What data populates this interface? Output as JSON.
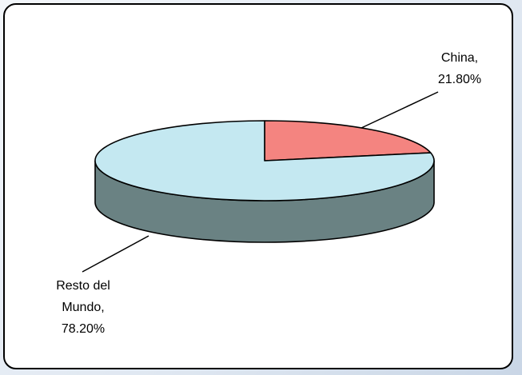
{
  "chart_data": {
    "type": "pie",
    "style": "3d",
    "title": "",
    "slices": [
      {
        "label": "China",
        "value": 21.8,
        "value_label": "21.80%",
        "color": "#f48480",
        "side_color": "#7a4240"
      },
      {
        "label": "Resto del Mundo",
        "value": 78.2,
        "value_label": "78.20%",
        "color": "#c4e8f1",
        "side_color": "#6a8283"
      }
    ],
    "labels": {
      "china_line1": "China,",
      "china_line2": "21.80%",
      "resto_line1": "Resto del",
      "resto_line2": "Mundo,",
      "resto_line3": "78.20%"
    }
  }
}
